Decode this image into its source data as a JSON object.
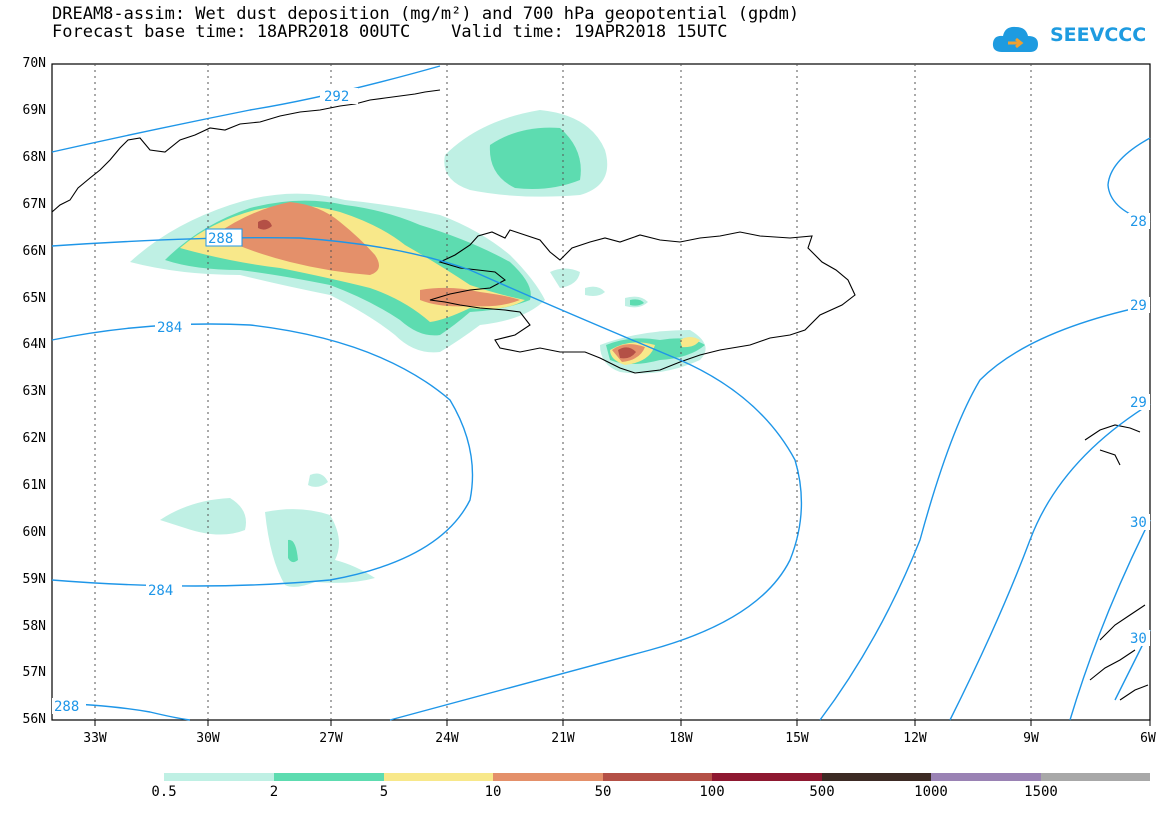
{
  "title": {
    "line1": "DREAM8-assim: Wet dust deposition (mg/m²) and 700 hPa geopotential (gpdm)",
    "line2": "Forecast base time: 18APR2018 00UTC    Valid time: 19APR2018 15UTC"
  },
  "logo": {
    "text": "SEEVCCC",
    "color": "#1e9be0"
  },
  "axes": {
    "lat_labels": [
      "70N",
      "69N",
      "68N",
      "67N",
      "66N",
      "65N",
      "64N",
      "63N",
      "62N",
      "61N",
      "60N",
      "59N",
      "58N",
      "57N",
      "56N"
    ],
    "lon_labels": [
      "33W",
      "30W",
      "27W",
      "24W",
      "21W",
      "18W",
      "15W",
      "12W",
      "9W",
      "6W"
    ]
  },
  "contours": {
    "color": "#1e96e8",
    "labels": [
      {
        "text": "292"
      },
      {
        "text": "288"
      },
      {
        "text": "284"
      },
      {
        "text": "284"
      },
      {
        "text": "288"
      },
      {
        "text": "28"
      },
      {
        "text": "29"
      },
      {
        "text": "29"
      },
      {
        "text": "30"
      },
      {
        "text": "30"
      }
    ]
  },
  "colorbar": {
    "labels": [
      "0.5",
      "2",
      "5",
      "10",
      "50",
      "100",
      "500",
      "1000",
      "1500"
    ],
    "colors": [
      "#bff0e4",
      "#5ddcb0",
      "#f8e88a",
      "#e4906a",
      "#b45046",
      "#8e1830",
      "#3c2a24",
      "#9a82b4",
      "#a8a8a8"
    ]
  },
  "dust_colors": {
    "l1": "#bff0e4",
    "l2": "#5ddcb0",
    "l3": "#f8e88a",
    "l4": "#e4906a",
    "l5": "#b45046"
  }
}
